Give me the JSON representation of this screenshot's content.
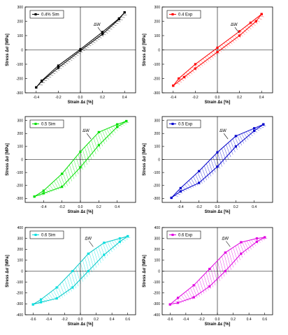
{
  "figure": {
    "ylabel": "Stress Δσ [MPa]",
    "xlabel": "Strain Δε [%]",
    "loop_label": "ΔW"
  },
  "chart_data": [
    {
      "type": "line",
      "title": "",
      "xlabel": "Strain Δε [%]",
      "ylabel": "Stress Δσ [MPa]",
      "xlim": [
        -0.5,
        0.5
      ],
      "ylim": [
        -300,
        300
      ],
      "xticks": [
        -0.4,
        -0.2,
        0.0,
        0.2,
        0.4
      ],
      "yticks": [
        -300,
        -200,
        -100,
        0,
        100,
        200,
        300
      ],
      "legend_position": "top-left",
      "color": "#000000",
      "annotation": "ΔW",
      "series": [
        {
          "name": "0.4% Sim",
          "upper": {
            "x": [
              -0.4,
              -0.35,
              -0.2,
              0,
              0.2,
              0.35,
              0.4
            ],
            "y": [
              -262,
              -215,
              -110,
              5,
              125,
              220,
              262
            ]
          },
          "lower": {
            "x": [
              -0.4,
              -0.35,
              -0.2,
              0,
              0.2,
              0.35,
              0.4
            ],
            "y": [
              -262,
              -220,
              -125,
              -5,
              110,
              215,
              262
            ]
          }
        }
      ]
    },
    {
      "type": "line",
      "title": "",
      "xlabel": "Strain Δε [%]",
      "ylabel": "Stress Δσ [MPa]",
      "xlim": [
        -0.5,
        0.5
      ],
      "ylim": [
        -300,
        300
      ],
      "xticks": [
        -0.4,
        -0.2,
        0.0,
        0.2,
        0.4
      ],
      "yticks": [
        -300,
        -200,
        -100,
        0,
        100,
        200,
        300
      ],
      "legend_position": "top-left",
      "color": "#ff0000",
      "annotation": "ΔW",
      "series": [
        {
          "name": "0.4 Exp",
          "upper": {
            "x": [
              -0.4,
              -0.35,
              -0.2,
              0,
              0.2,
              0.3,
              0.4
            ],
            "y": [
              -250,
              -200,
              -100,
              15,
              130,
              190,
              250
            ]
          },
          "lower": {
            "x": [
              -0.4,
              -0.3,
              -0.2,
              0,
              0.2,
              0.35,
              0.4
            ],
            "y": [
              -250,
              -190,
              -130,
              -15,
              100,
              200,
              250
            ]
          }
        }
      ]
    },
    {
      "type": "line",
      "title": "",
      "xlabel": "Strain Δε [%]",
      "ylabel": "Stress Δσ [MPa]",
      "xlim": [
        -0.6,
        0.6
      ],
      "ylim": [
        -330,
        330
      ],
      "xticks": [
        -0.4,
        -0.2,
        0.0,
        0.2,
        0.4
      ],
      "yticks": [
        -300,
        -200,
        -100,
        0,
        100,
        200,
        300
      ],
      "legend_position": "top-left",
      "color": "#00e000",
      "annotation": "ΔW",
      "series": [
        {
          "name": "0.5 Sim",
          "upper": {
            "x": [
              -0.5,
              -0.4,
              -0.2,
              0,
              0.2,
              0.4,
              0.5
            ],
            "y": [
              -285,
              -240,
              -110,
              60,
              210,
              270,
              295
            ]
          },
          "lower": {
            "x": [
              -0.5,
              -0.4,
              -0.2,
              0,
              0.2,
              0.4,
              0.5
            ],
            "y": [
              -285,
              -260,
              -210,
              -60,
              110,
              250,
              295
            ]
          }
        }
      ]
    },
    {
      "type": "line",
      "title": "",
      "xlabel": "Strain Δε [%]",
      "ylabel": "Stress Δσ [MPa]",
      "xlim": [
        -0.6,
        0.6
      ],
      "ylim": [
        -330,
        330
      ],
      "xticks": [
        -0.4,
        -0.2,
        0.0,
        0.2,
        0.4
      ],
      "yticks": [
        -300,
        -200,
        -100,
        0,
        100,
        200,
        300
      ],
      "legend_position": "top-left",
      "color": "#0000cc",
      "annotation": "ΔW",
      "series": [
        {
          "name": "0.5 Exp",
          "upper": {
            "x": [
              -0.5,
              -0.4,
              -0.2,
              0,
              0.2,
              0.4,
              0.5
            ],
            "y": [
              -295,
              -220,
              -90,
              55,
              180,
              240,
              270
            ]
          },
          "lower": {
            "x": [
              -0.5,
              -0.4,
              -0.2,
              0,
              0.2,
              0.4,
              0.5
            ],
            "y": [
              -295,
              -245,
              -180,
              -55,
              100,
              220,
              270
            ]
          }
        }
      ]
    },
    {
      "type": "line",
      "title": "",
      "xlabel": "Strain Δε [%]",
      "ylabel": "Stress Δσ [MPa]",
      "xlim": [
        -0.7,
        0.7
      ],
      "ylim": [
        -400,
        400
      ],
      "xticks": [
        -0.6,
        -0.4,
        -0.2,
        0.0,
        0.2,
        0.4,
        0.6
      ],
      "yticks": [
        -400,
        -300,
        -200,
        -100,
        0,
        100,
        200,
        300,
        400
      ],
      "legend_position": "top-left",
      "color": "#00e0e0",
      "annotation": "ΔW",
      "series": [
        {
          "name": "0.6 Sim",
          "upper": {
            "x": [
              -0.6,
              -0.5,
              -0.3,
              -0.1,
              0.1,
              0.3,
              0.5,
              0.6
            ],
            "y": [
              -305,
              -260,
              -150,
              0,
              160,
              260,
              300,
              320
            ]
          },
          "lower": {
            "x": [
              -0.6,
              -0.5,
              -0.3,
              -0.1,
              0.1,
              0.3,
              0.5,
              0.6
            ],
            "y": [
              -305,
              -285,
              -250,
              -150,
              0,
              150,
              270,
              320
            ]
          }
        }
      ]
    },
    {
      "type": "line",
      "title": "",
      "xlabel": "Strain Δε [%]",
      "ylabel": "Stress Δσ [MPa]",
      "xlim": [
        -0.7,
        0.7
      ],
      "ylim": [
        -400,
        400
      ],
      "xticks": [
        -0.6,
        -0.4,
        -0.2,
        0.0,
        0.2,
        0.4,
        0.6
      ],
      "yticks": [
        -400,
        -300,
        -200,
        -100,
        0,
        100,
        200,
        300,
        400
      ],
      "legend_position": "top-left",
      "color": "#e000e0",
      "annotation": "ΔW",
      "series": [
        {
          "name": "0.6 Exp",
          "upper": {
            "x": [
              -0.6,
              -0.5,
              -0.3,
              -0.1,
              0.1,
              0.3,
              0.5,
              0.6
            ],
            "y": [
              -305,
              -245,
              -130,
              20,
              170,
              265,
              300,
              310
            ]
          },
          "lower": {
            "x": [
              -0.6,
              -0.5,
              -0.3,
              -0.1,
              0.1,
              0.3,
              0.5,
              0.6
            ],
            "y": [
              -305,
              -290,
              -240,
              -140,
              0,
              160,
              270,
              310
            ]
          }
        }
      ]
    }
  ]
}
